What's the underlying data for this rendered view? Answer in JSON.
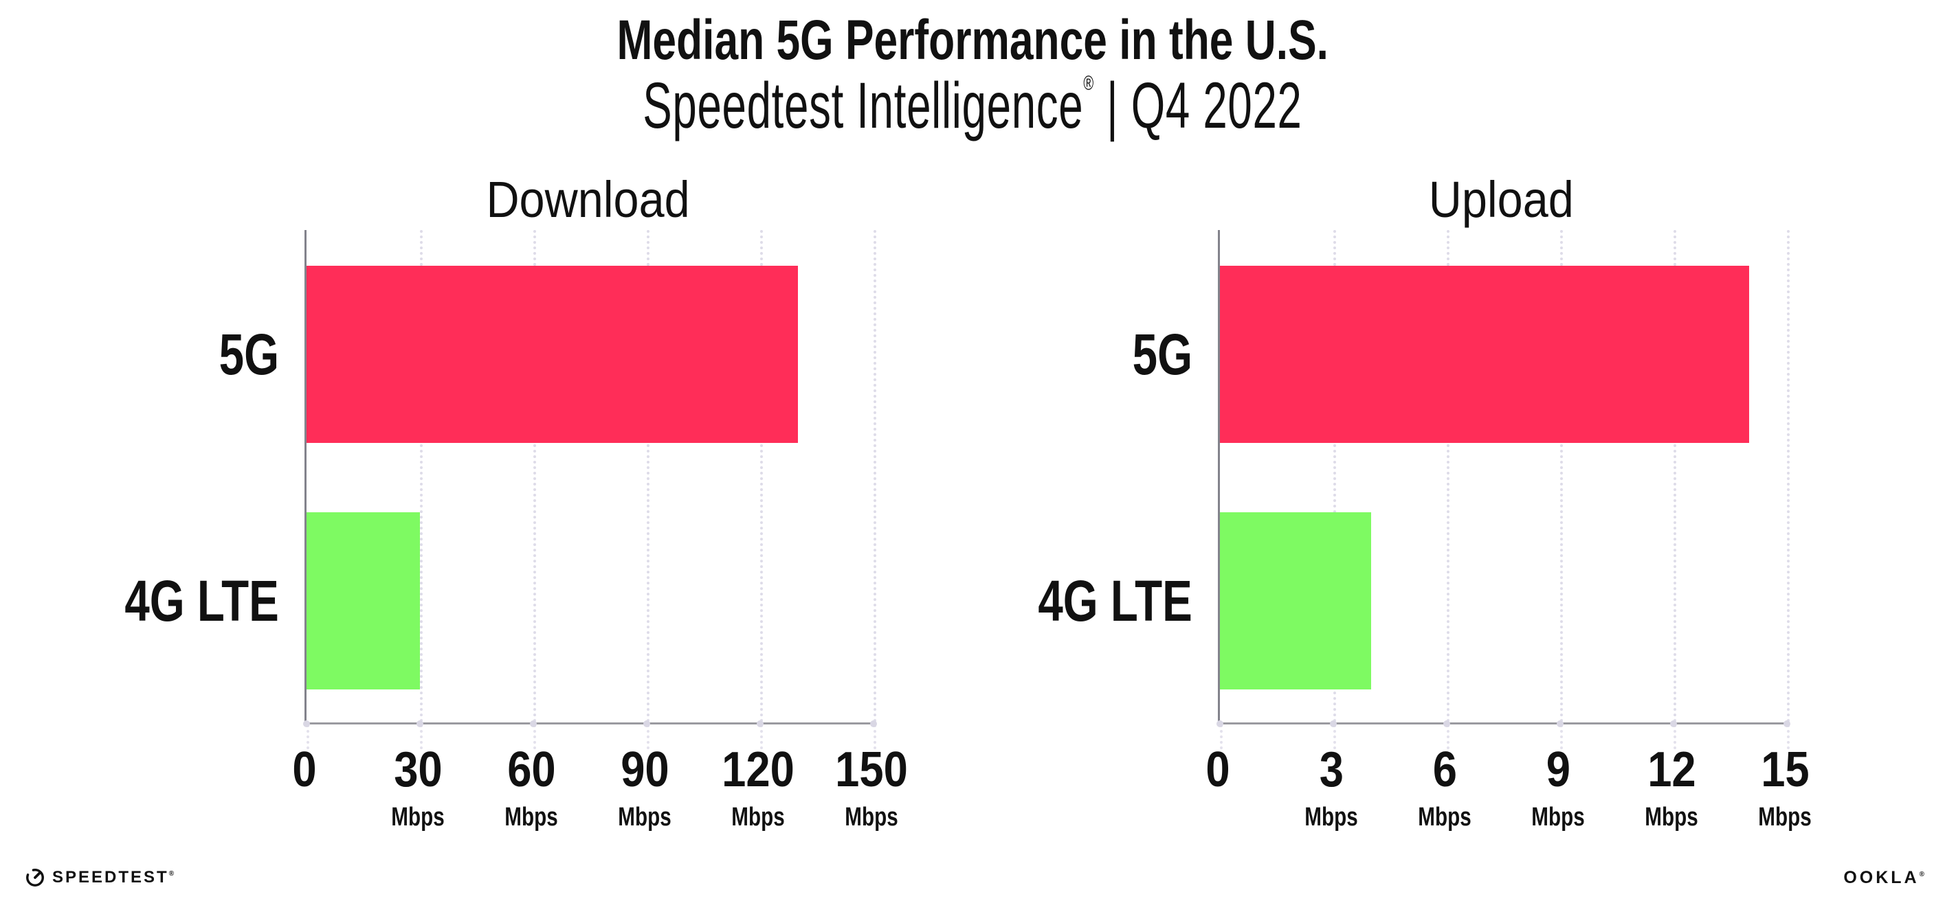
{
  "header": {
    "title": "Median 5G Performance in the U.S.",
    "subtitle_brand": "Speedtest Intelligence",
    "subtitle_reg": "®",
    "subtitle_rest": " | Q4 2022"
  },
  "colors": {
    "bar_5g": "#ff2d58",
    "bar_4g_lte": "#7efa62",
    "gridline": "#dedce9",
    "axis": "#9a9aa0",
    "text": "#111111"
  },
  "chart_data": [
    {
      "type": "bar",
      "orientation": "horizontal",
      "title": "Download",
      "categories": [
        "5G",
        "4G LTE"
      ],
      "values": [
        130,
        30
      ],
      "unit": "Mbps",
      "xlim": [
        0,
        150
      ],
      "xticks": [
        0,
        30,
        60,
        90,
        120,
        150
      ],
      "bar_colors": [
        "#ff2d58",
        "#7efa62"
      ],
      "grid": "dotted-vertical",
      "legend": "none"
    },
    {
      "type": "bar",
      "orientation": "horizontal",
      "title": "Upload",
      "categories": [
        "5G",
        "4G LTE"
      ],
      "values": [
        14,
        4
      ],
      "unit": "Mbps",
      "xlim": [
        0,
        15
      ],
      "xticks": [
        0,
        3,
        6,
        9,
        12,
        15
      ],
      "bar_colors": [
        "#ff2d58",
        "#7efa62"
      ],
      "grid": "dotted-vertical",
      "legend": "none"
    }
  ],
  "footer": {
    "speedtest_label": "SPEEDTEST",
    "speedtest_reg": "®",
    "ookla_label": "OOKLA",
    "ookla_reg": "®"
  }
}
